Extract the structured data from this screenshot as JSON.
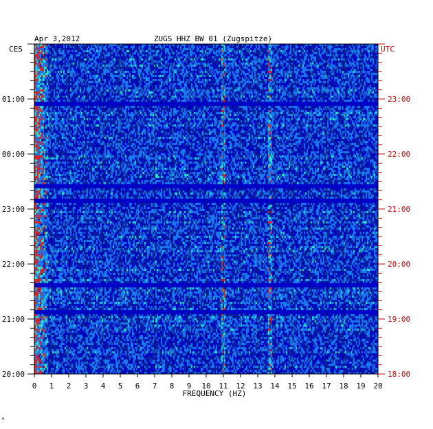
{
  "header": {
    "date": "Apr 3,2012",
    "station": "ZUGS HHZ BW 01 (Zugspitze)"
  },
  "left_tz": "CES",
  "right_tz": "UTC",
  "corner_mark": "*",
  "chart_data": {
    "type": "heatmap",
    "title": "ZUGS HHZ BW 01 (Zugspitze)",
    "xlabel": "FREQUENCY (HZ)",
    "x_ticks": [
      "0",
      "1",
      "2",
      "3",
      "4",
      "5",
      "6",
      "7",
      "8",
      "9",
      "10",
      "11",
      "12",
      "13",
      "14",
      "15",
      "16",
      "17",
      "18",
      "19",
      "20"
    ],
    "xlim": [
      0,
      20
    ],
    "left_axis_label": "CES",
    "left_ticks": [
      "01:00",
      "00:00",
      "23:00",
      "22:00",
      "21:00",
      "20:00"
    ],
    "right_axis_label": "UTC",
    "right_ticks": [
      "23:00",
      "22:00",
      "21:00",
      "20:00",
      "19:00",
      "18:00"
    ],
    "time_span_hours": 6,
    "colors": {
      "background": "#0000c8",
      "low": "#0a1ea0",
      "mid": "#1a78f0",
      "high": "#2ee8c8",
      "peak": "#e02020",
      "right_axis": "#cc0000"
    },
    "features": [
      {
        "name": "low-frequency energy band",
        "freq_range": [
          0,
          0.8
        ]
      },
      {
        "name": "persistent spectral line",
        "freq": 13.7
      },
      {
        "name": "persistent spectral line",
        "freq": 11.0
      }
    ]
  }
}
